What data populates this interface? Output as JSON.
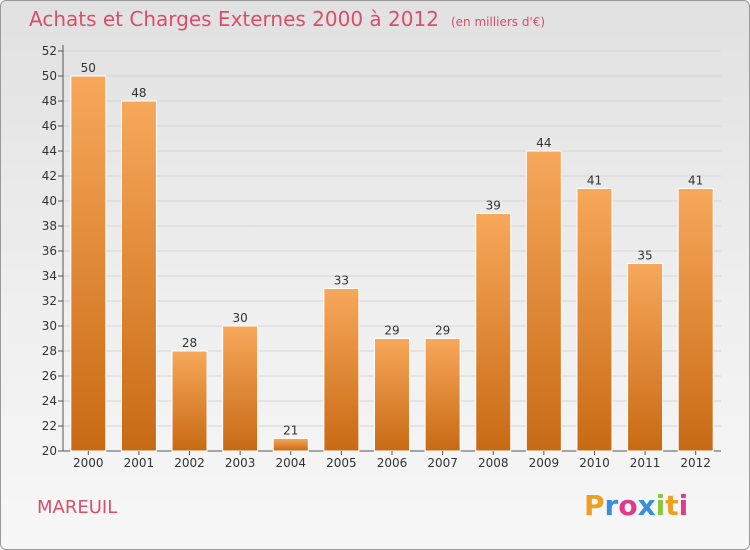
{
  "header": {
    "title": "Achats et Charges Externes 2000 à 2012",
    "subtitle": "(en milliers d'€)"
  },
  "footer": {
    "commune": "MAREUIL",
    "logo_letters": [
      "P",
      "r",
      "o",
      "x",
      "i",
      "t",
      "i"
    ],
    "logo_colors": [
      "#f0a020",
      "#3a8fd8",
      "#e23a8a",
      "#3a8fd8",
      "#8cc63f",
      "#f0a020",
      "#e23a8a"
    ]
  },
  "colors": {
    "bar_top": "#f7a85a",
    "bar_bottom": "#c86a14",
    "bar_edge": "#ffffff",
    "grid": "#d6d6d6",
    "axis": "#555555",
    "title": "#d94f6a"
  },
  "chart_data": {
    "type": "bar",
    "title": "Achats et Charges Externes 2000 à 2012",
    "subtitle": "(en milliers d'€)",
    "categories": [
      "2000",
      "2001",
      "2002",
      "2003",
      "2004",
      "2005",
      "2006",
      "2007",
      "2008",
      "2009",
      "2010",
      "2011",
      "2012"
    ],
    "values": [
      50,
      48,
      28,
      30,
      21,
      33,
      29,
      29,
      39,
      44,
      41,
      35,
      41
    ],
    "ylim": [
      20,
      52
    ],
    "yticks": [
      20,
      22,
      24,
      26,
      28,
      30,
      32,
      34,
      36,
      38,
      40,
      42,
      44,
      46,
      48,
      50,
      52
    ],
    "grid": true,
    "xlabel": "",
    "ylabel": ""
  }
}
